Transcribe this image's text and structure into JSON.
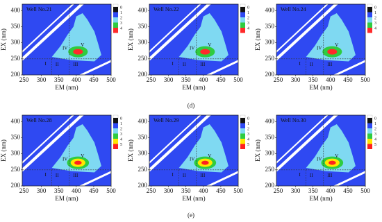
{
  "panel_labels": [
    "(d)",
    "(e)"
  ],
  "chart_data": [
    {
      "type": "contour",
      "title": "Well No.21",
      "x_label": "EM (nm)",
      "y_label": "EX (nm)",
      "xlim": [
        245,
        500
      ],
      "ylim": [
        200,
        420
      ],
      "xticks": [
        250,
        300,
        350,
        400,
        450,
        500
      ],
      "yticks": [
        200,
        250,
        300,
        350,
        400
      ],
      "colorbar_ticks": [
        0,
        1,
        2,
        3,
        4
      ],
      "level_colors": [
        "#111111",
        "#2f49f2",
        "#7fd9f2",
        "#2ecc40",
        "#ff2a2a"
      ],
      "regions": [
        "I",
        "II",
        "III",
        "IV",
        "V"
      ]
    },
    {
      "type": "contour",
      "title": "Well No.22",
      "x_label": "EM (nm)",
      "y_label": "EX (nm)",
      "xlim": [
        245,
        500
      ],
      "ylim": [
        200,
        420
      ],
      "xticks": [
        250,
        300,
        350,
        400,
        450,
        500
      ],
      "yticks": [
        200,
        250,
        300,
        350,
        400
      ],
      "colorbar_ticks": [
        0,
        1,
        2,
        3,
        4
      ],
      "level_colors": [
        "#111111",
        "#2f49f2",
        "#7fd9f2",
        "#2ecc40",
        "#ff2a2a"
      ],
      "regions": [
        "I",
        "II",
        "III",
        "IV",
        "V"
      ]
    },
    {
      "type": "contour",
      "title": "Well No.24",
      "x_label": "EM (nm)",
      "y_label": "EX (nm)",
      "xlim": [
        245,
        500
      ],
      "ylim": [
        200,
        420
      ],
      "xticks": [
        250,
        300,
        350,
        400,
        450,
        500
      ],
      "yticks": [
        200,
        250,
        300,
        350,
        400
      ],
      "colorbar_ticks": [
        0,
        1,
        2,
        3,
        4
      ],
      "level_colors": [
        "#111111",
        "#2f49f2",
        "#7fd9f2",
        "#2ecc40",
        "#ff2a2a"
      ],
      "regions": [
        "I",
        "II",
        "III",
        "IV",
        "V"
      ]
    },
    {
      "type": "contour",
      "title": "Well No.28",
      "x_label": "EM (nm)",
      "y_label": "EX (nm)",
      "xlim": [
        245,
        500
      ],
      "ylim": [
        200,
        420
      ],
      "xticks": [
        250,
        300,
        350,
        400,
        450,
        500
      ],
      "yticks": [
        200,
        250,
        300,
        350,
        400
      ],
      "colorbar_ticks": [
        0,
        1,
        2,
        3,
        4,
        5
      ],
      "level_colors": [
        "#111111",
        "#2f49f2",
        "#7fd9f2",
        "#2ecc40",
        "#ffe600",
        "#ff2020"
      ],
      "regions": [
        "I",
        "II",
        "III",
        "IV",
        "V"
      ]
    },
    {
      "type": "contour",
      "title": "Well No.29",
      "x_label": "EM (nm)",
      "y_label": "EX (nm)",
      "xlim": [
        245,
        500
      ],
      "ylim": [
        200,
        420
      ],
      "xticks": [
        250,
        300,
        350,
        400,
        450,
        500
      ],
      "yticks": [
        200,
        250,
        300,
        350,
        400
      ],
      "colorbar_ticks": [
        0,
        1,
        2,
        3,
        4,
        5
      ],
      "level_colors": [
        "#111111",
        "#2f49f2",
        "#7fd9f2",
        "#2ecc40",
        "#ffe600",
        "#ff2020"
      ],
      "regions": [
        "I",
        "II",
        "III",
        "IV",
        "V"
      ]
    },
    {
      "type": "contour",
      "title": "Well No.30",
      "x_label": "EM (nm)",
      "y_label": "EX (nm)",
      "xlim": [
        245,
        500
      ],
      "ylim": [
        200,
        420
      ],
      "xticks": [
        250,
        300,
        350,
        400,
        450,
        500
      ],
      "yticks": [
        200,
        250,
        300,
        350,
        400
      ],
      "colorbar_ticks": [
        0,
        1,
        2,
        3,
        4,
        5
      ],
      "level_colors": [
        "#111111",
        "#2f49f2",
        "#7fd9f2",
        "#2ecc40",
        "#ffe600",
        "#ff2020"
      ],
      "regions": [
        "I",
        "II",
        "III",
        "IV",
        "V"
      ]
    }
  ]
}
